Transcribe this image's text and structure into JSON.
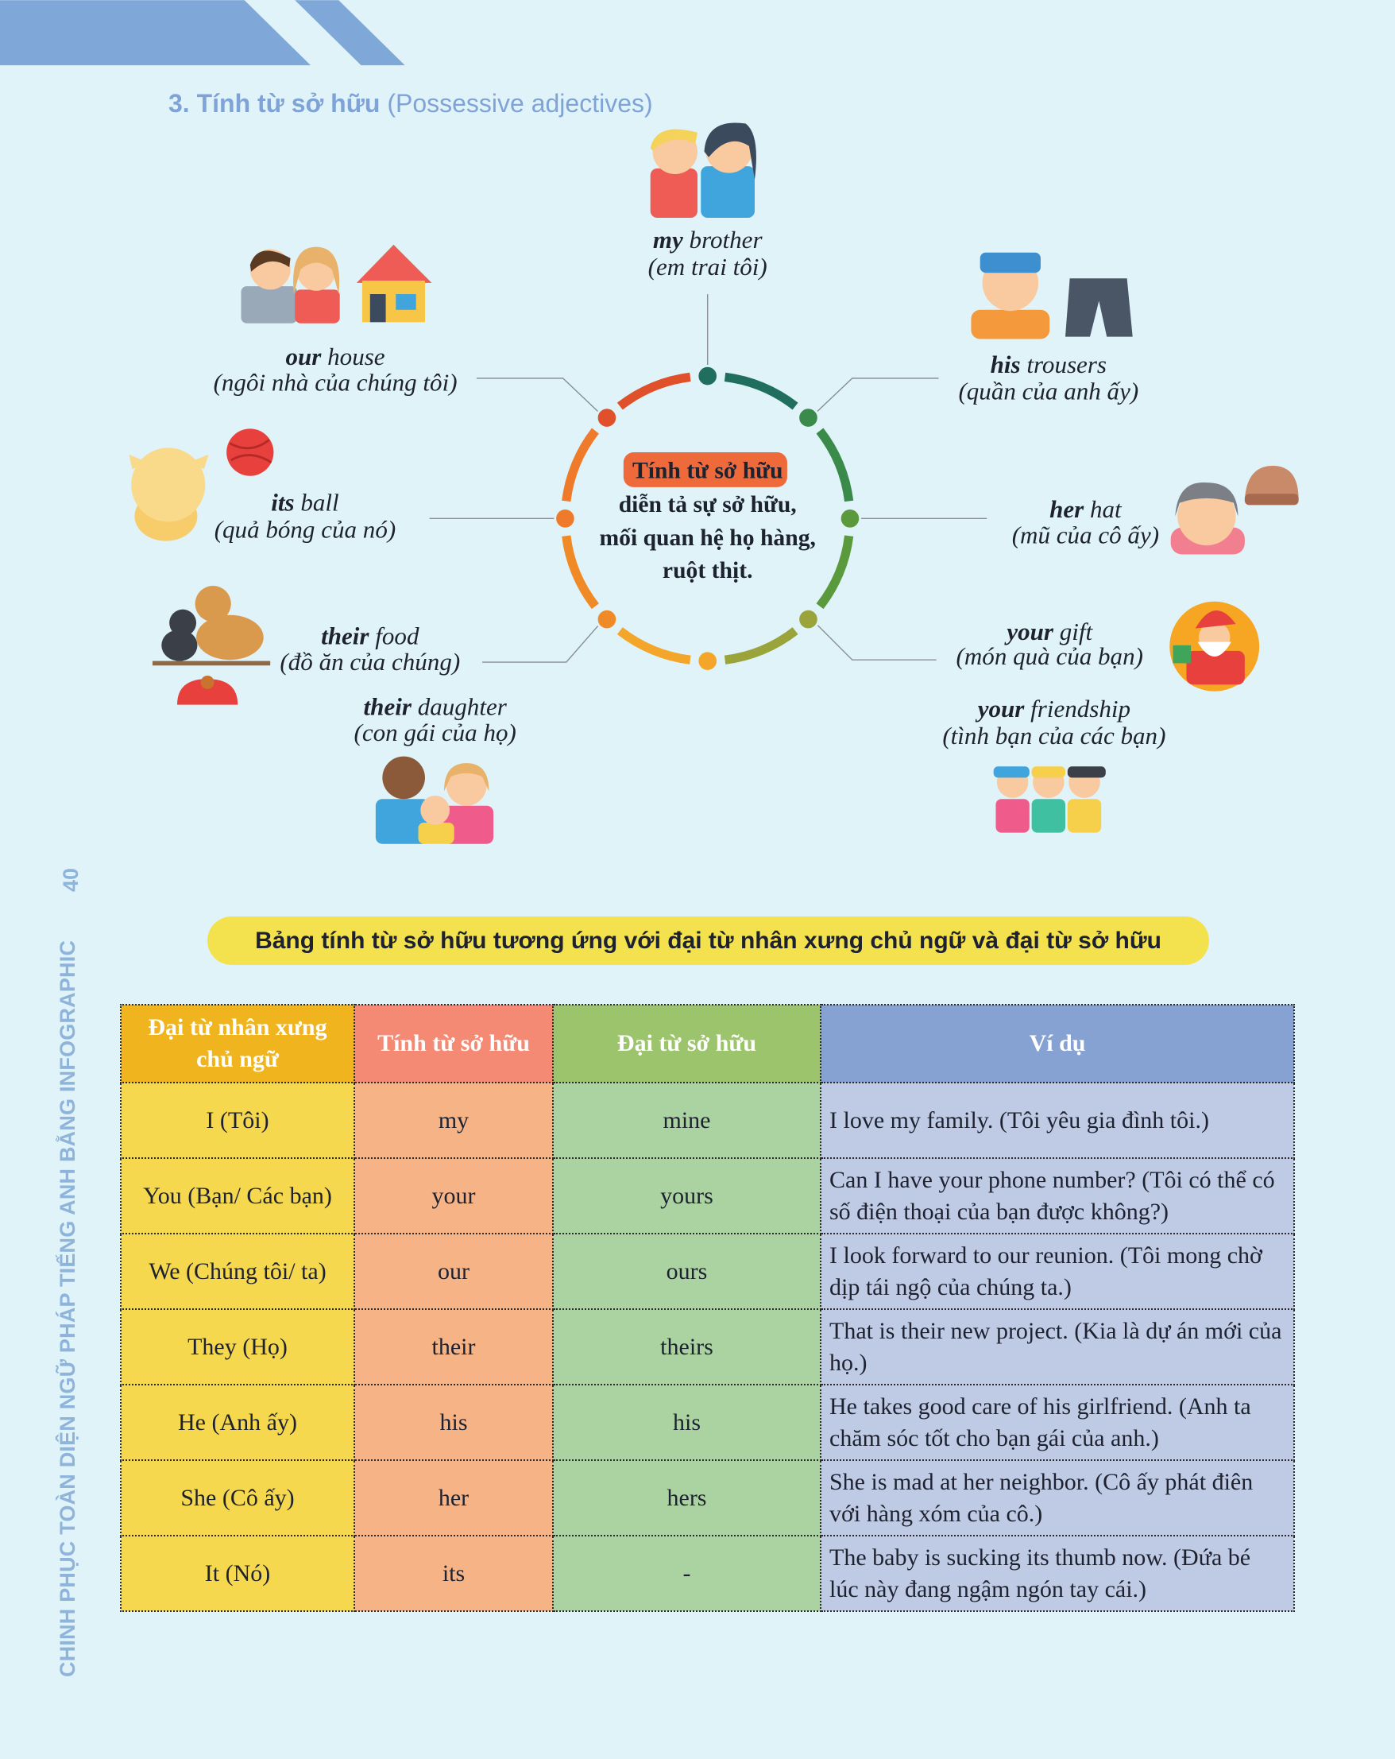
{
  "section_title": {
    "bold": "3. Tính từ sở hữu",
    "normal": " (Possessive adjectives)"
  },
  "side_text": "CHINH PHỤC TOÀN DIỆN NGỮ PHÁP TIẾNG ANH BẰNG INFOGRAPHIC",
  "page_number": "40",
  "center": {
    "highlight": "Tính từ sở hữu",
    "lines": [
      "diễn tả sự sở hữu,",
      "mối quan hệ họ hàng,",
      "ruột thịt."
    ]
  },
  "examples": [
    {
      "key": "my",
      "word": " brother",
      "meaning": "(em trai tôi)",
      "icon": "brother-sister-icon"
    },
    {
      "key": "our",
      "word": " house",
      "meaning": "(ngôi nhà của chúng tôi)",
      "icon": "couple-house-icon"
    },
    {
      "key": "his",
      "word": " trousers",
      "meaning": "(quần của anh ấy)",
      "icon": "boy-trousers-icon"
    },
    {
      "key": "its",
      "word": " ball",
      "meaning": "(quả bóng của nó)",
      "icon": "cat-yarn-ball-icon"
    },
    {
      "key": "her",
      "word": " hat",
      "meaning": "(mũ của cô ấy)",
      "icon": "girl-hat-icon"
    },
    {
      "key": "their",
      "word": " food",
      "meaning": "(đồ ăn của chúng)",
      "icon": "cat-dog-food-icon"
    },
    {
      "key": "your",
      "word": " gift",
      "meaning": "(món quà của bạn)",
      "icon": "santa-gift-icon"
    },
    {
      "key": "their",
      "word": " daughter",
      "meaning": "(con gái của họ)",
      "icon": "family-icon"
    },
    {
      "key": "your",
      "word": " friendship",
      "meaning": "(tình bạn của các bạn)",
      "icon": "friends-icon"
    }
  ],
  "banner": "Bảng tính từ sở hữu tương ứng với đại từ nhân xưng chủ ngữ và đại từ sở hữu",
  "table": {
    "headers": [
      "Đại từ nhân xưng chủ ngữ",
      "Tính từ sở hữu",
      "Đại từ sở hữu",
      "Ví dụ"
    ],
    "rows": [
      [
        "I (Tôi)",
        "my",
        "mine",
        "I love my family. (Tôi yêu gia đình tôi.)"
      ],
      [
        "You (Bạn/ Các bạn)",
        "your",
        "yours",
        "Can I have your phone number? (Tôi có thể có số điện thoại của bạn được không?)"
      ],
      [
        "We (Chúng tôi/ ta)",
        "our",
        "ours",
        "I look forward to our reunion. (Tôi mong chờ dịp tái ngộ của chúng ta.)"
      ],
      [
        "They (Họ)",
        "their",
        "theirs",
        "That is their new project. (Kia là dự án mới của họ.)"
      ],
      [
        "He (Anh ấy)",
        "his",
        "his",
        "He takes good care of his girlfriend. (Anh ta chăm sóc tốt cho bạn gái của anh.)"
      ],
      [
        "She (Cô ấy)",
        "her",
        "hers",
        "She is mad at her neighbor. (Cô ấy phát điên với hàng xóm của cô.)"
      ],
      [
        "It (Nó)",
        "its",
        "-",
        "The baby is sucking its thumb now. (Đứa bé lúc này đang ngậm ngón tay cái.)"
      ]
    ]
  },
  "colors": {
    "background": "#e0f3f8",
    "header_band": "#7fa8d8",
    "title": "#7fa3d6",
    "banner": "#f3e24e",
    "center_highlight": "#ef6a3a",
    "col_headers": [
      "#f0b41e",
      "#f48a74",
      "#9cc46c",
      "#86a2d2"
    ],
    "col_cells": [
      "#f5d84e",
      "#f5b386",
      "#abd3a1",
      "#bfcbe4"
    ]
  }
}
